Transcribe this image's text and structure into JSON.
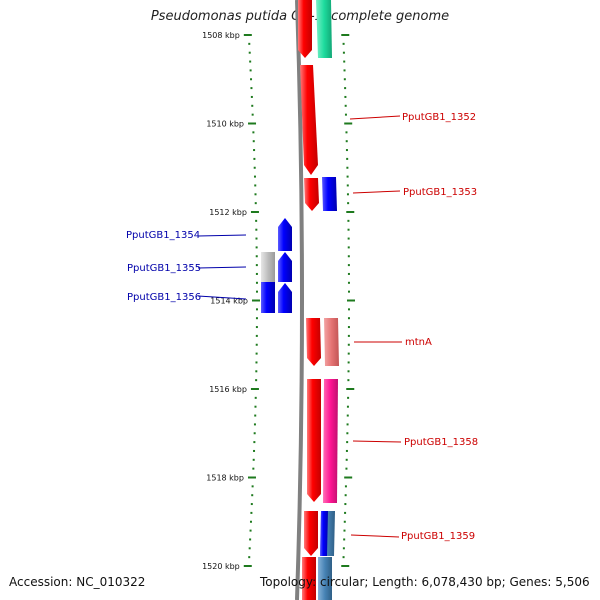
{
  "title": "Pseudomonas putida GB-1, complete genome",
  "footer": {
    "accession": "Accession: NC_010322",
    "topology": "Topology: circular; Length: 6,078,430 bp; Genes: 5,506"
  },
  "colors": {
    "backbone": "#808080",
    "tick": "#1e7a1e",
    "forward_gene": "#ff0000",
    "reverse_gene": "#0000ff",
    "teal_gene": "#1edc9e",
    "pink_gene": "#ff1493",
    "salmon_gene": "#e57373",
    "gray_gene": "#bdbdbd",
    "steel_gene": "#4682b4",
    "label_right": "#cc0000",
    "label_left": "#0000aa"
  },
  "ruler": {
    "unit": "kbp",
    "ticks": [
      {
        "kbp": 1508,
        "label": "1508 kbp"
      },
      {
        "kbp": 1510,
        "label": "1510 kbp"
      },
      {
        "kbp": 1512,
        "label": "1512 kbp"
      },
      {
        "kbp": 1514,
        "label": "1514 kbp"
      },
      {
        "kbp": 1516,
        "label": "1516 kbp"
      },
      {
        "kbp": 1518,
        "label": "1518 kbp"
      },
      {
        "kbp": 1520,
        "label": "1520 kbp"
      }
    ]
  },
  "genes_right": [
    {
      "name": "PputGB1_1352",
      "label": "PputGB1_1352"
    },
    {
      "name": "PputGB1_1353",
      "label": "PputGB1_1353"
    },
    {
      "name": "mtnA",
      "label": "mtnA"
    },
    {
      "name": "PputGB1_1358",
      "label": "PputGB1_1358"
    },
    {
      "name": "PputGB1_1359",
      "label": "PputGB1_1359"
    }
  ],
  "genes_left": [
    {
      "name": "PputGB1_1354",
      "label": "PputGB1_1354"
    },
    {
      "name": "PputGB1_1355",
      "label": "PputGB1_1355"
    },
    {
      "name": "PputGB1_1356",
      "label": "PputGB1_1356"
    }
  ]
}
